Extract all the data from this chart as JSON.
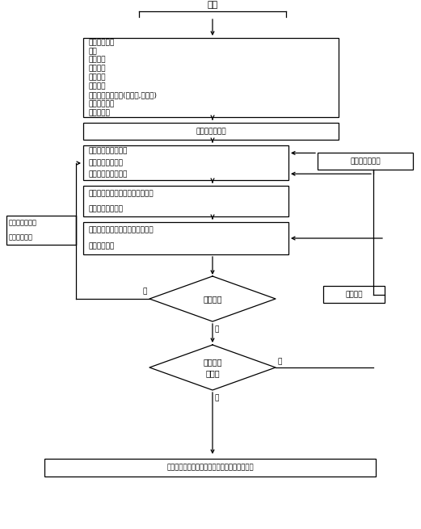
{
  "title": "开始",
  "box1_lines": [
    "输在原始数据",
    "钢种",
    "来料厚度",
    "成品厚度",
    "带坯宽度",
    "轧辊数据",
    "末机架工作辊类型(先前辊,毛面辊)",
    "设备能力参数",
    "模型常数表"
  ],
  "box2_text": "直前分级表数据",
  "box3_lines": [
    "元前分配轧制程模式",
    "元前分配压制系数",
    "张力刺度和速度制度"
  ],
  "box4_lines": [
    "总体下差有各机架的平方分配作为",
    "迭代计算的初始值"
  ],
  "box5_lines": [
    "采用工艺数学模型计算相关工艺参",
    "数，迭代计算"
  ],
  "diamond1_text": "收敛否？",
  "diamond2_line1": "工艺参数",
  "diamond2_line2": "超限？",
  "box6_text": "输出工艺参数，将此下分配数据保存到数据库中",
  "left_box_lines": [
    "调节前在分配比",
    "例系数或张力"
  ],
  "right_box1_text": "操作工手动下达",
  "right_box2_text": "修正计算",
  "label_yes1": "是",
  "label_no1": "否",
  "label_yes2": "是",
  "label_no2": "否",
  "bg": "#ffffff",
  "lw": 0.9
}
